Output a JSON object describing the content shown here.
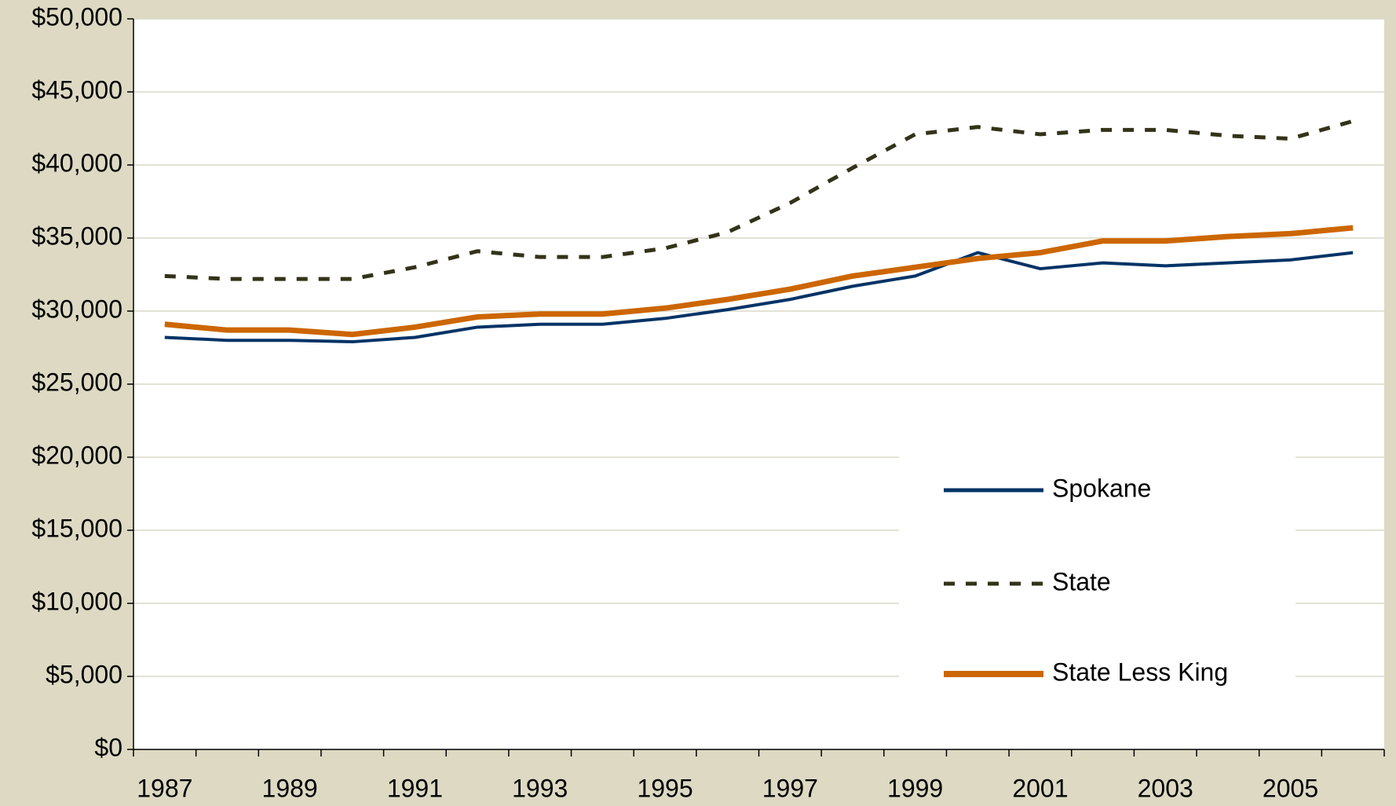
{
  "chart_data": {
    "type": "line",
    "categories": [
      "1987",
      null,
      "1989",
      null,
      "1991",
      null,
      "1993",
      null,
      "1995",
      null,
      "1997",
      null,
      "1999",
      null,
      "2001",
      null,
      "2003",
      null,
      "2005",
      null
    ],
    "series": [
      {
        "name": "Spokane",
        "color": "#003366",
        "dash": false,
        "values": [
          28200,
          28000,
          28000,
          27900,
          28200,
          28900,
          29100,
          29100,
          29500,
          30100,
          30800,
          31700,
          32400,
          34000,
          32900,
          33300,
          33100,
          33300,
          33500,
          34000
        ]
      },
      {
        "name": "State",
        "color": "#333319",
        "dash": true,
        "values": [
          32400,
          32200,
          32200,
          32200,
          33000,
          34100,
          33700,
          33700,
          34300,
          35400,
          37400,
          39800,
          42100,
          42600,
          42100,
          42400,
          42400,
          42000,
          41800,
          43000
        ]
      },
      {
        "name": "State Less King",
        "color": "#cc6600",
        "dash": false,
        "values": [
          29100,
          28700,
          28700,
          28400,
          28900,
          29600,
          29800,
          29800,
          30200,
          30800,
          31500,
          32400,
          33000,
          33600,
          34000,
          34800,
          34800,
          35100,
          35300,
          35700
        ]
      }
    ],
    "ylim": [
      0,
      50000
    ],
    "yticks": [
      {
        "value": 0,
        "label": "$0"
      },
      {
        "value": 5000,
        "label": "$5,000"
      },
      {
        "value": 10000,
        "label": "$10,000"
      },
      {
        "value": 15000,
        "label": "$15,000"
      },
      {
        "value": 20000,
        "label": "$20,000"
      },
      {
        "value": 25000,
        "label": "$25,000"
      },
      {
        "value": 30000,
        "label": "$30,000"
      },
      {
        "value": 35000,
        "label": "$35,000"
      },
      {
        "value": 40000,
        "label": "$40,000"
      },
      {
        "value": 45000,
        "label": "$45,000"
      },
      {
        "value": 50000,
        "label": "$50,000"
      }
    ],
    "grid": true,
    "legend": "lower right"
  }
}
